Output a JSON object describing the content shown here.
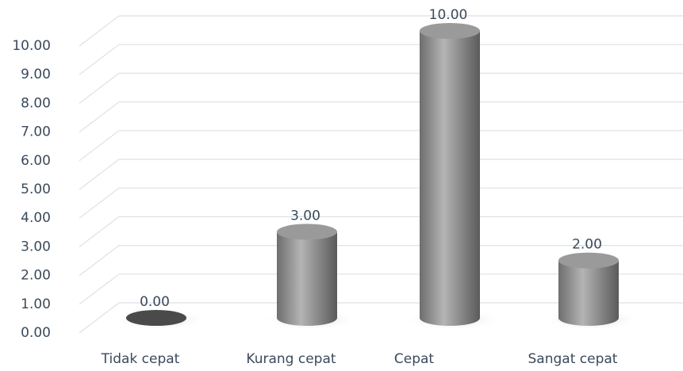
{
  "chart_data": {
    "type": "bar",
    "categories": [
      "Tidak cepat",
      "Kurang cepat",
      "Cepat",
      "Sangat cepat"
    ],
    "values": [
      0,
      3,
      10,
      2
    ],
    "value_labels": [
      "0.00",
      "3.00",
      "10.00",
      "2.00"
    ],
    "color": "#8c8c8c",
    "ylim": [
      0,
      10
    ],
    "yticks": [
      {
        "value": 0,
        "label": "0.00"
      },
      {
        "value": 1,
        "label": "1.00"
      },
      {
        "value": 2,
        "label": "2.00"
      },
      {
        "value": 3,
        "label": "3.00"
      },
      {
        "value": 4,
        "label": "4.00"
      },
      {
        "value": 5,
        "label": "5.00"
      },
      {
        "value": 6,
        "label": "6.00"
      },
      {
        "value": 7,
        "label": "7.00"
      },
      {
        "value": 8,
        "label": "8.00"
      },
      {
        "value": 9,
        "label": "9.00"
      },
      {
        "value": 10,
        "label": "10.00"
      }
    ],
    "grid": true
  }
}
